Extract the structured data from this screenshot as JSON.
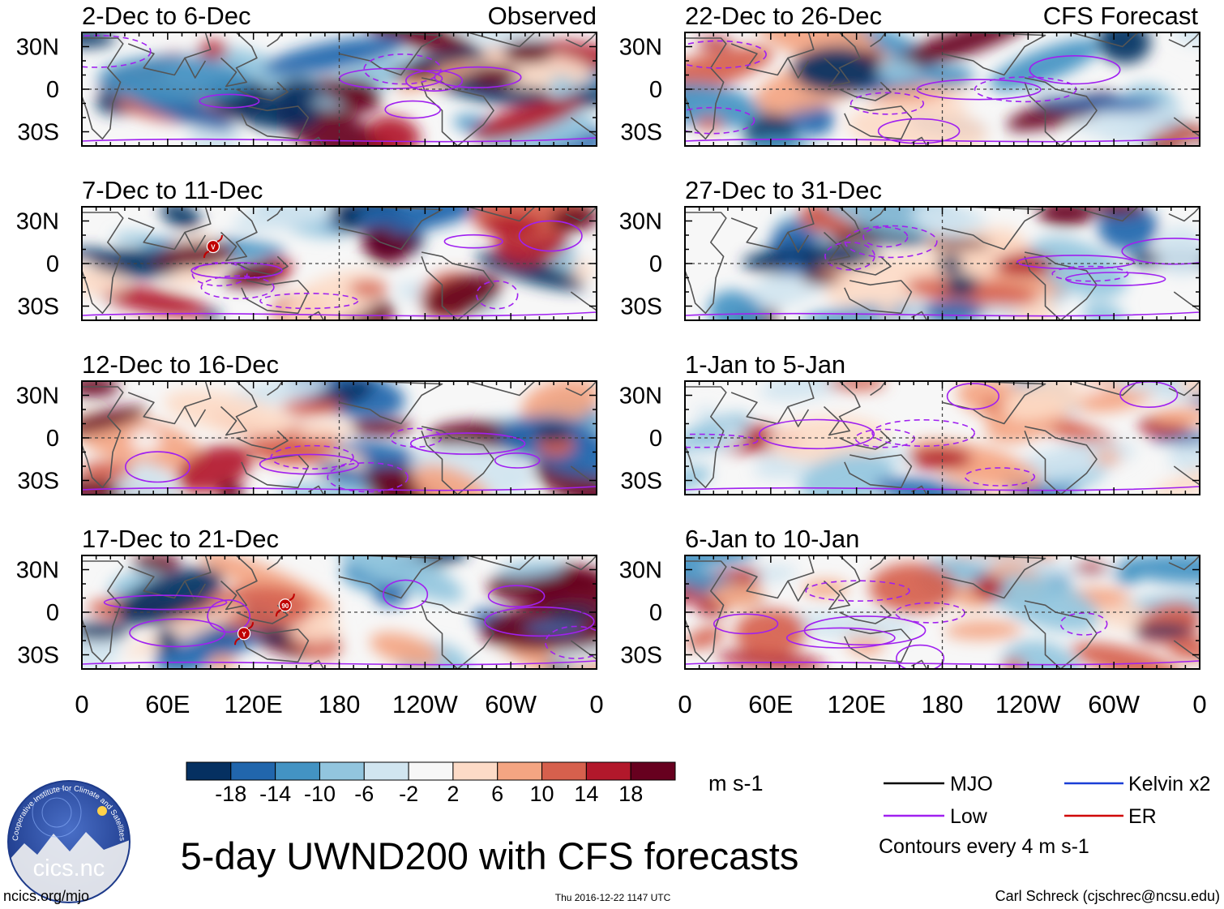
{
  "chart_data": {
    "type": "heatmap",
    "title": "5-day UWND200 with CFS forecasts",
    "variable": "UWND200",
    "units": "m s-1",
    "x_ticks": [
      "0",
      "60E",
      "120E",
      "180",
      "120W",
      "60W",
      "0"
    ],
    "y_ticks": [
      "30N",
      "0",
      "30S"
    ],
    "colorbar": {
      "ticks": [
        "-18",
        "-14",
        "-10",
        "-6",
        "-2",
        "2",
        "6",
        "10",
        "14",
        "18"
      ],
      "levels": [
        -18,
        -14,
        -10,
        -6,
        -2,
        2,
        6,
        10,
        14,
        18
      ],
      "colors": [
        "#053061",
        "#2166ac",
        "#4393c3",
        "#92c5de",
        "#d1e5f0",
        "#f7f7f7",
        "#fddbc7",
        "#f4a582",
        "#d6604d",
        "#b2182b",
        "#67001f"
      ]
    },
    "columns": [
      {
        "header": "Observed",
        "panels": [
          "2-Dec to 6-Dec",
          "7-Dec to 11-Dec",
          "12-Dec to 16-Dec",
          "17-Dec to 21-Dec"
        ]
      },
      {
        "header": "CFS Forecast",
        "panels": [
          "22-Dec to 26-Dec",
          "27-Dec to 31-Dec",
          "1-Jan to 5-Jan",
          "6-Jan to 10-Jan"
        ]
      }
    ],
    "legend": [
      {
        "label": "MJO",
        "color": "#000000"
      },
      {
        "label": "Kelvin x2",
        "color": "#1a3fd6"
      },
      {
        "label": "Low",
        "color": "#a020f0"
      },
      {
        "label": "ER",
        "color": "#d00000"
      }
    ],
    "contour_note": "Contours every 4 m s-1",
    "storm_markers": [
      {
        "panel": "7-Dec to 11-Dec",
        "label": "V"
      },
      {
        "panel": "17-Dec to 21-Dec",
        "label": "90"
      },
      {
        "panel": "17-Dec to 21-Dec",
        "label": "Y"
      }
    ]
  },
  "footer": {
    "logo_text": "cics.nc",
    "logo_ring": "Cooperative Institute for Climate and Satellites",
    "url": "ncics.org/mjo",
    "timestamp": "Thu 2016-12-22 1147 UTC",
    "author": "Carl Schreck (cjschrec@ncsu.edu)"
  }
}
